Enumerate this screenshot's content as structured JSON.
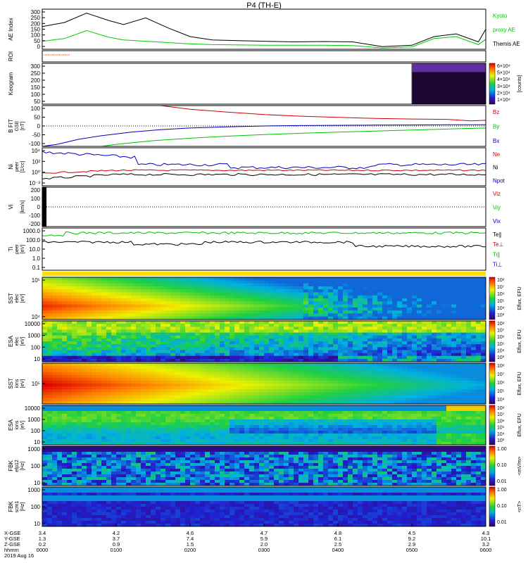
{
  "title": "P4 (TH-E)",
  "colors": {
    "ae_black": "#000000",
    "ae_green": "#00cc00",
    "bz": "#d00000",
    "by": "#00c000",
    "bx": "#0000c0",
    "ne": "#d00000",
    "ni": "#0000c0",
    "npot": "#000000",
    "te": "#000000",
    "ti": "#00c000",
    "ebar": "#ffdd00"
  },
  "chart_data": [
    {
      "type": "line",
      "name": "ae",
      "ylabel": "AE Index",
      "yunit": "",
      "ylim": [
        0,
        300
      ],
      "yticks": [
        "300",
        "250",
        "200",
        "150",
        "100",
        "50",
        "0"
      ],
      "legend": [
        {
          "label": "Kyoto",
          "color": "#00cc00"
        },
        {
          "label": "proxy AE",
          "color": "#00cc00"
        },
        {
          "label": "Themis AE",
          "color": "#000000"
        }
      ],
      "series": [
        {
          "label": "Themis AE",
          "x": [
            0,
            0.3,
            0.6,
            0.9,
            1.1,
            1.4,
            1.7,
            2.0,
            2.3,
            2.6,
            3.0,
            3.4,
            3.8,
            4.2,
            4.6,
            5.0,
            5.3,
            5.6,
            5.9,
            6.0
          ],
          "y": [
            170,
            200,
            270,
            215,
            185,
            235,
            160,
            95,
            70,
            65,
            60,
            55,
            58,
            55,
            20,
            30,
            95,
            115,
            55,
            150
          ]
        },
        {
          "label": "Kyoto proxy AE",
          "x": [
            0,
            0.3,
            0.6,
            0.9,
            1.1,
            1.4,
            1.7,
            2.0,
            2.3,
            2.6,
            3.0,
            3.4,
            3.8,
            4.2,
            4.6,
            5.0,
            5.3,
            5.6,
            5.9,
            6.0
          ],
          "y": [
            60,
            80,
            140,
            90,
            70,
            60,
            50,
            40,
            35,
            33,
            30,
            30,
            30,
            28,
            10,
            18,
            80,
            95,
            35,
            75
          ]
        }
      ]
    },
    {
      "type": "line",
      "name": "roi",
      "ylabel": "ROI",
      "yunit": "",
      "yticks": []
    },
    {
      "type": "heatmap",
      "name": "keogram",
      "ylabel": "Keogram",
      "yunit": "",
      "ylim": [
        0,
        300
      ],
      "yticks": [
        "300",
        "250",
        "200",
        "150",
        "100",
        "50"
      ],
      "colorbar": {
        "labels": [
          "6×10⁴",
          "5×10⁴",
          "4×10⁴",
          "3×10⁴",
          "2×10⁴",
          "1×10⁴"
        ],
        "unit": "[counts]"
      }
    },
    {
      "type": "line",
      "name": "bfield",
      "ylabel": "B FIT",
      "ysub": "GSE",
      "yunit": "[nT]",
      "ylim": [
        -100,
        100
      ],
      "yticks": [
        "100",
        "50",
        "0",
        "-50",
        "-100"
      ],
      "legend": [
        {
          "label": "Bz",
          "color": "#d00000"
        },
        {
          "label": "By",
          "color": "#00c000"
        },
        {
          "label": "Bx",
          "color": "#0000c0"
        }
      ],
      "series": [
        {
          "label": "Bz",
          "x": [
            1.6,
            2.0,
            2.5,
            3.0,
            3.5,
            4.0,
            4.5,
            5.0,
            5.5,
            5.8,
            6.0
          ],
          "y": [
            100,
            82,
            68,
            56,
            48,
            42,
            37,
            34,
            32,
            25,
            28
          ]
        },
        {
          "label": "By",
          "x": [
            0.8,
            1.0,
            1.5,
            2.0,
            2.5,
            3.0,
            3.5,
            4.0,
            4.5,
            5.0,
            5.5,
            6.0
          ],
          "y": [
            -100,
            -90,
            -72,
            -60,
            -50,
            -42,
            -36,
            -30,
            -25,
            -20,
            -15,
            -10
          ]
        },
        {
          "label": "Bx",
          "x": [
            0,
            0.2,
            0.5,
            0.8,
            1.2,
            1.6,
            2.0,
            2.5,
            3.0,
            3.5,
            4.0,
            4.5,
            5.0,
            5.5,
            6.0
          ],
          "y": [
            -100,
            -90,
            -65,
            -48,
            -30,
            -18,
            -10,
            -4,
            0,
            2,
            3,
            4,
            5,
            6,
            6
          ]
        }
      ]
    },
    {
      "type": "line",
      "name": "density",
      "ylabel": "Ni",
      "ysub": "peer",
      "yunit": "[1/cc]",
      "yticks": [
        "10⁴",
        "10²",
        "10⁰",
        "10⁻²"
      ],
      "legend": [
        {
          "label": "Ne",
          "color": "#d00000"
        },
        {
          "label": "Ni",
          "color": "#000000"
        },
        {
          "label": "Npot",
          "color": "#0000c0"
        }
      ]
    },
    {
      "type": "line",
      "name": "velocity",
      "ylabel": "Vi",
      "ysub": "",
      "yunit": "[km/s]",
      "ylim": [
        -200,
        200
      ],
      "yticks": [
        "200",
        "100",
        "0",
        "-100",
        "-200"
      ],
      "legend": [
        {
          "label": "Viz",
          "color": "#d00000"
        },
        {
          "label": "Viy",
          "color": "#00c000"
        },
        {
          "label": "Vix",
          "color": "#0000c0"
        }
      ]
    },
    {
      "type": "line",
      "name": "temperature",
      "ylabel": "Ti",
      "ysub": "peer",
      "yunit": "[eV]",
      "yticks": [
        "1000.0",
        "100.0",
        "10.0",
        "1.0",
        "0.1"
      ],
      "legend": [
        {
          "label": "Te∥",
          "color": "#000000"
        },
        {
          "label": "Te⊥",
          "color": "#d00000"
        },
        {
          "label": "Ti∥",
          "color": "#00c000"
        },
        {
          "label": "Ti⊥",
          "color": "#0000c0"
        }
      ]
    },
    {
      "type": "heatmap",
      "name": "sst_e",
      "ylabel": "SST",
      "ysub": "elec",
      "yunit": "[eV]",
      "yticks": [
        "10⁵",
        "10⁴"
      ],
      "colorbar": {
        "labels": [
          "10⁸",
          "10⁷",
          "10⁶",
          "10⁵",
          "10⁴",
          "10³"
        ],
        "unit": "Eflux, EFU"
      }
    },
    {
      "type": "heatmap",
      "name": "esa_e",
      "ylabel": "ESA",
      "ysub": "elec",
      "yunit": "[eV]",
      "yticks": [
        "10000",
        "1000",
        "100",
        "10"
      ],
      "colorbar": {
        "labels": [
          "10⁸",
          "10⁷",
          "10⁶",
          "10⁵",
          "10⁴",
          "10³"
        ],
        "unit": "Eflux, EFU"
      }
    },
    {
      "type": "heatmap",
      "name": "sst_i",
      "ylabel": "SST",
      "ysub": "ions",
      "yunit": "[eV]",
      "yticks": [
        "10⁵"
      ],
      "colorbar": {
        "labels": [
          "10⁸",
          "10⁷",
          "10⁶",
          "10⁵",
          "10⁴"
        ],
        "unit": "Eflux, EFU"
      }
    },
    {
      "type": "heatmap",
      "name": "esa_i",
      "ylabel": "ESA",
      "ysub": "ions",
      "yunit": "[eV]",
      "yticks": [
        "10000",
        "1000",
        "100",
        "10"
      ],
      "colorbar": {
        "labels": [
          "10⁸",
          "10⁷",
          "10⁶",
          "10⁵",
          "10⁴",
          "10³"
        ],
        "unit": "Eflux, EFU"
      }
    },
    {
      "type": "heatmap",
      "name": "fbk_e",
      "ylabel": "FBK",
      "ysub": "efp12",
      "yunit": "[Hz]",
      "yticks": [
        "1000",
        "100",
        "10"
      ],
      "colorbar": {
        "labels": [
          "1.00",
          "0.10",
          "0.01"
        ],
        "unit": "<mV/m>"
      }
    },
    {
      "type": "heatmap",
      "name": "fbk_b",
      "ylabel": "FBK",
      "ysub": "scm1",
      "yunit": "[Hz]",
      "yticks": [
        "1000",
        "100",
        "10"
      ],
      "colorbar": {
        "labels": [
          "1.00",
          "0.10",
          "0.01"
        ],
        "unit": "<nT>"
      }
    }
  ],
  "xaxis": {
    "row_labels": [
      "X-GSE",
      "Y-GSE",
      "Z-GSE",
      "hhmm",
      "2019 Aug 16"
    ],
    "ticks": [
      {
        "x": 0,
        "vals": [
          "3.4",
          "1.3",
          "0.2",
          "0000"
        ]
      },
      {
        "x": 1,
        "vals": [
          "4.2",
          "3.7",
          "0.9",
          "0100"
        ]
      },
      {
        "x": 2,
        "vals": [
          "4.6",
          "7.4",
          "1.5",
          "0200"
        ]
      },
      {
        "x": 3,
        "vals": [
          "4.7",
          "5.9",
          "2.0",
          "0300"
        ]
      },
      {
        "x": 4,
        "vals": [
          "4.8",
          "6.1",
          "2.5",
          "0400"
        ]
      },
      {
        "x": 5,
        "vals": [
          "4.5",
          "9.2",
          "2.9",
          "0500"
        ]
      },
      {
        "x": 6,
        "vals": [
          "4.3",
          "10.1",
          "3.2",
          "0600"
        ]
      }
    ]
  }
}
